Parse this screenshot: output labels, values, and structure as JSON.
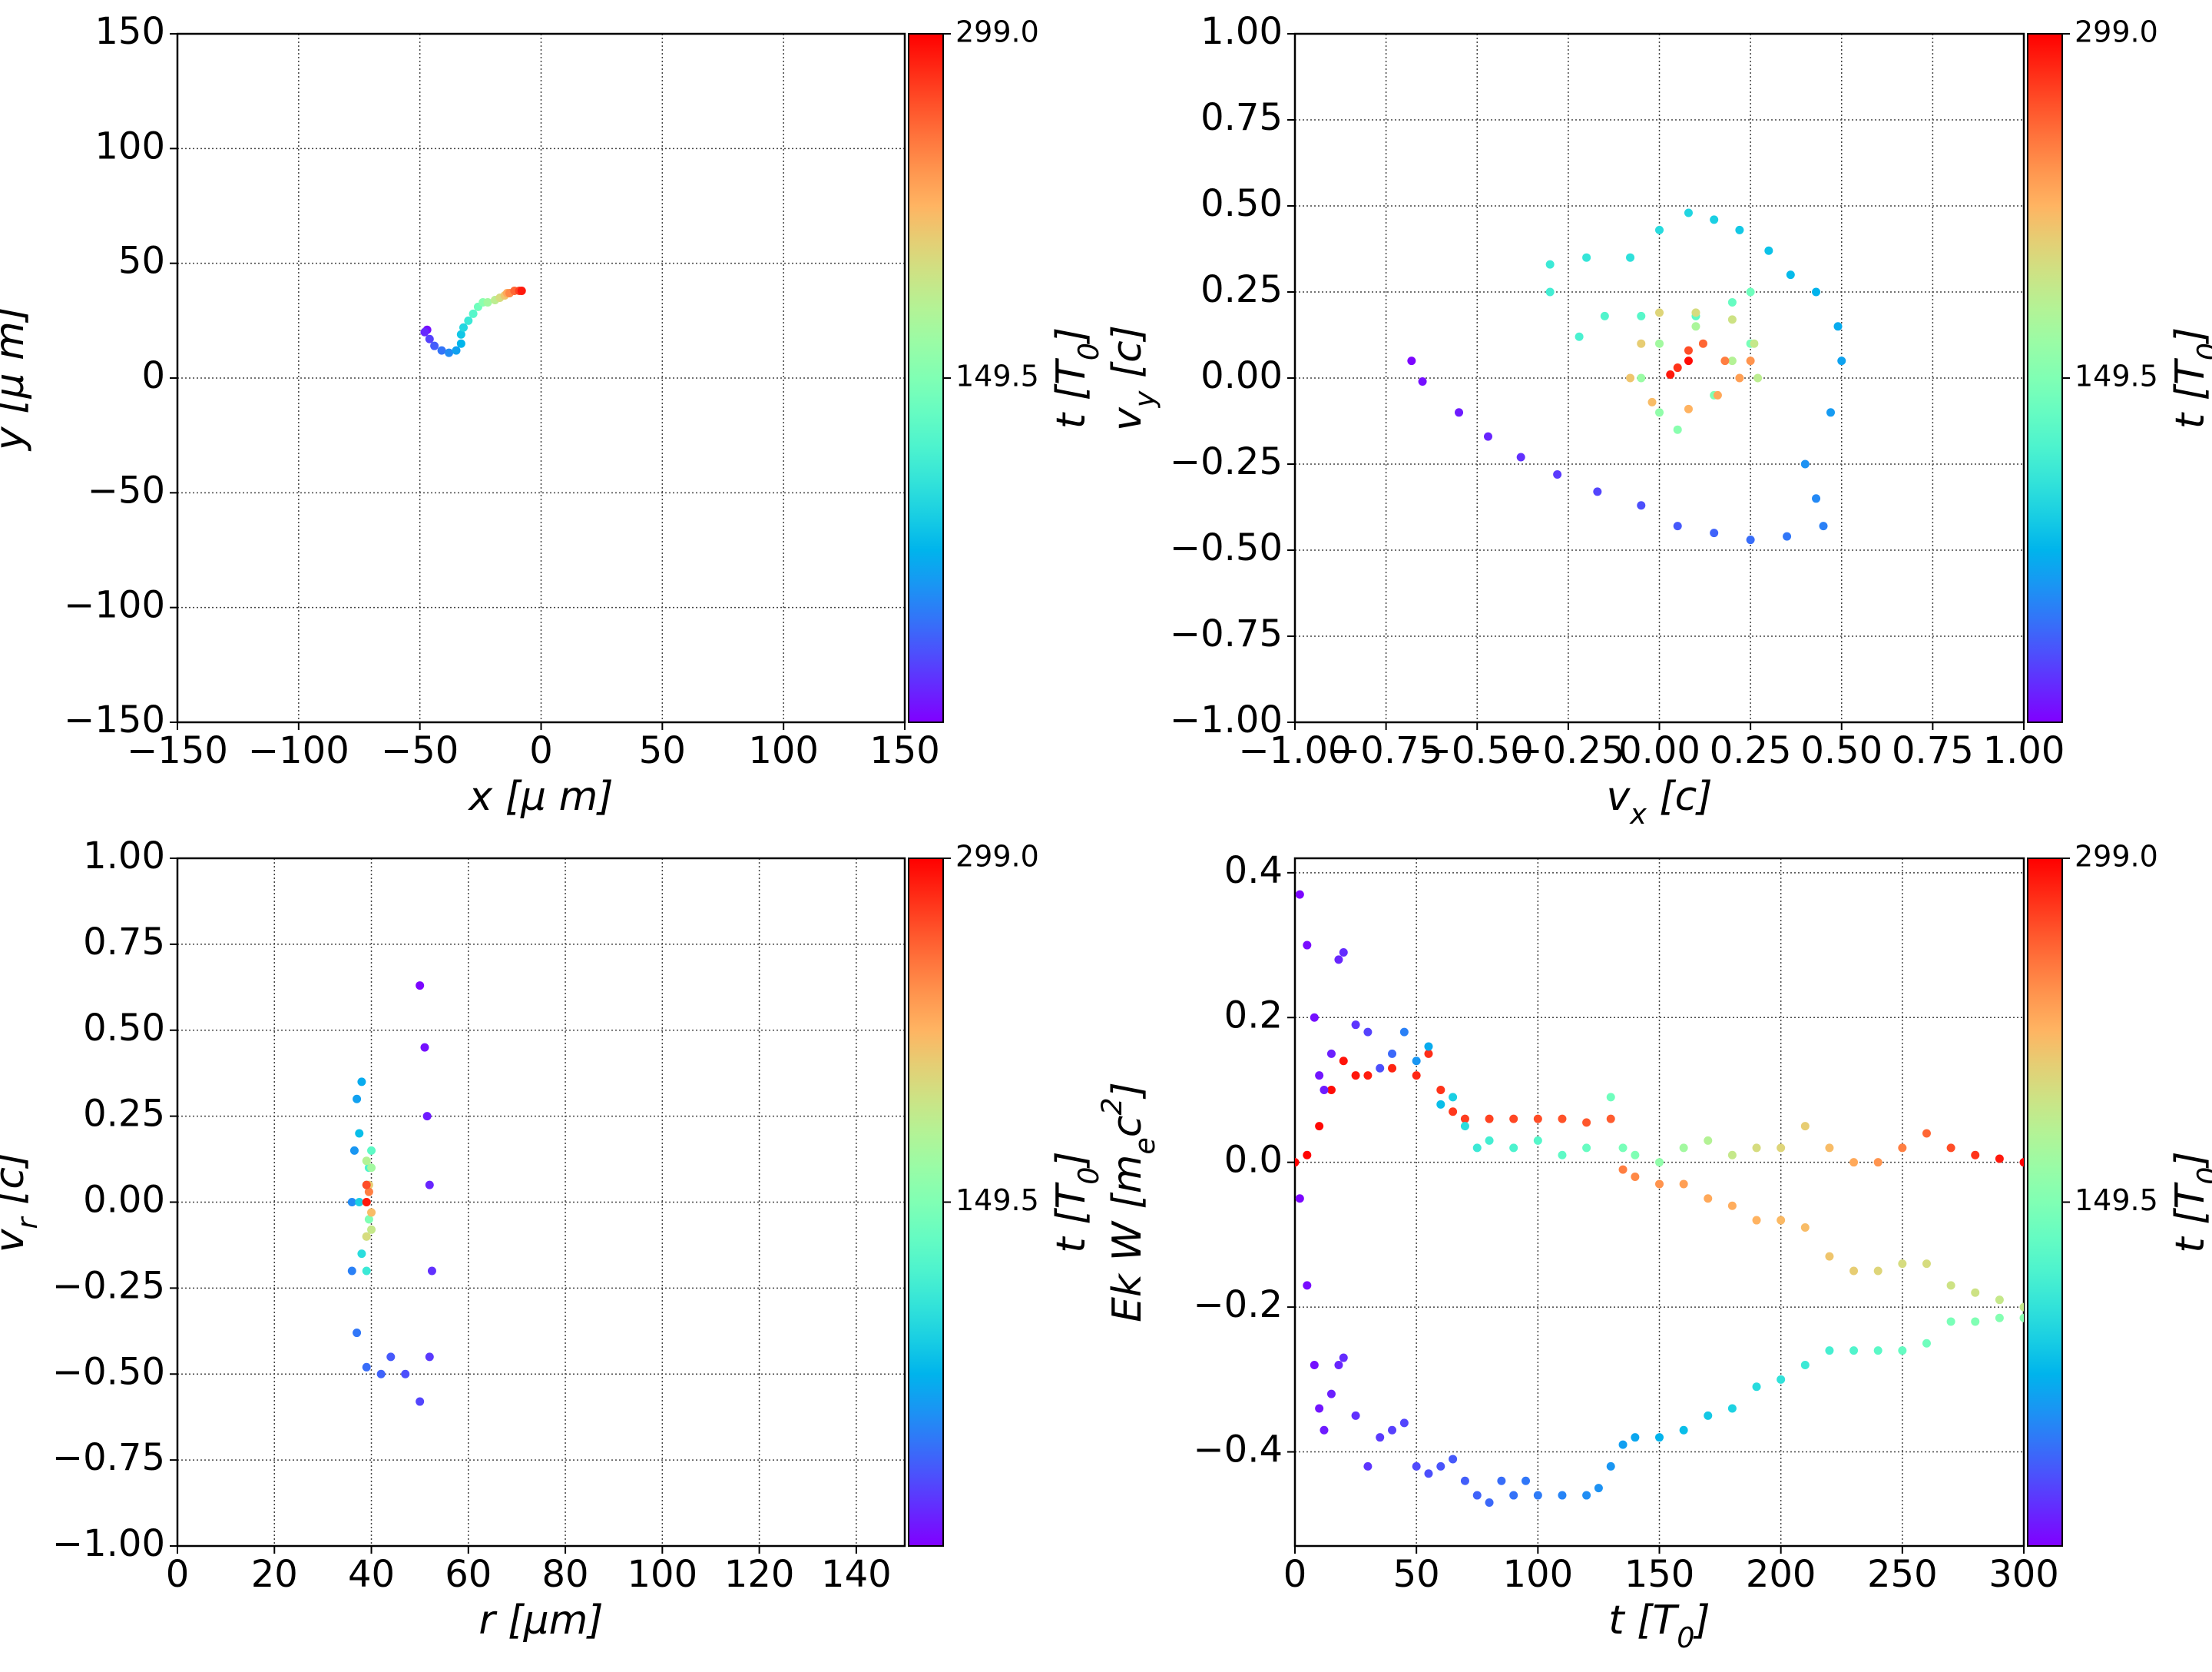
{
  "chart_data": [
    {
      "type": "scatter",
      "xlabel": "x  [μ m]",
      "ylabel": "y  [μ m]",
      "xlim": [
        -150,
        150
      ],
      "ylim": [
        -150,
        150
      ],
      "grid": true,
      "xticks": [
        {
          "value": -150,
          "label": "−150"
        },
        {
          "value": -100,
          "label": "−100"
        },
        {
          "value": -50,
          "label": "−50"
        },
        0,
        50,
        100,
        150
      ],
      "yticks": [
        {
          "value": -150,
          "label": "−150"
        },
        {
          "value": -100,
          "label": "−100"
        },
        {
          "value": -50,
          "label": "−50"
        },
        0,
        50,
        100,
        150
      ],
      "series": [
        {
          "x": [
            -47,
            -48,
            -46,
            -44,
            -41,
            -38,
            -35,
            -33,
            -33,
            -32,
            -30,
            -28,
            -26,
            -24,
            -22,
            -19,
            -17,
            -15,
            -14,
            -13,
            -11,
            -9,
            -8
          ],
          "values": [
            21,
            20,
            17,
            14,
            12,
            11,
            12,
            15,
            19,
            22,
            25,
            28,
            31,
            33,
            33,
            34,
            35,
            36,
            37,
            37,
            38,
            38,
            38
          ],
          "c": [
            5,
            15,
            25,
            35,
            45,
            55,
            65,
            75,
            85,
            95,
            110,
            125,
            140,
            155,
            170,
            185,
            200,
            215,
            230,
            245,
            260,
            275,
            290
          ]
        }
      ],
      "colorbar": {
        "label": "t [T_{0}]",
        "colormap": "rainbow",
        "clim": [
          0,
          299
        ],
        "ticks": [
          149.5,
          {
            "value": 299,
            "label": "299.0"
          }
        ]
      }
    },
    {
      "type": "scatter",
      "xlabel": "v_{x} [c]",
      "ylabel": "v_{y} [c]",
      "xlim": [
        -1,
        1
      ],
      "ylim": [
        -1,
        1
      ],
      "grid": true,
      "xticks": [
        {
          "value": -1,
          "label": "−1.00"
        },
        {
          "value": -0.75,
          "label": "−0.75"
        },
        {
          "value": -0.5,
          "label": "−0.50"
        },
        {
          "value": -0.25,
          "label": "−0.25"
        },
        {
          "value": 0,
          "label": "0.00"
        },
        0.25,
        {
          "value": 0.5,
          "label": "0.50"
        },
        0.75,
        {
          "value": 1,
          "label": "1.00"
        }
      ],
      "yticks": [
        {
          "value": -1,
          "label": "−1.00"
        },
        {
          "value": -0.75,
          "label": "−0.75"
        },
        {
          "value": -0.5,
          "label": "−0.50"
        },
        {
          "value": -0.25,
          "label": "−0.25"
        },
        {
          "value": 0,
          "label": "0.00"
        },
        0.25,
        {
          "value": 0.5,
          "label": "0.50"
        },
        0.75,
        {
          "value": 1,
          "label": "1.00"
        }
      ],
      "series": [
        {
          "x": [
            -0.68,
            -0.65,
            -0.55,
            -0.47,
            -0.38,
            -0.28,
            -0.17,
            -0.05,
            0.05,
            0.15,
            0.25,
            0.35,
            0.45,
            0.43,
            0.4,
            0.47,
            0.5,
            0.49,
            0.43,
            0.36,
            0.3,
            0.22,
            0.15,
            0.08,
            0.0,
            -0.08,
            -0.2,
            -0.3,
            -0.3,
            -0.22,
            -0.15,
            -0.05,
            0.1,
            0.2,
            0.25,
            0.25,
            0.15,
            0.05,
            0.0,
            -0.05,
            0.0,
            0.1,
            0.2,
            0.27,
            0.26,
            0.2,
            0.1,
            0.0,
            -0.05,
            -0.08,
            -0.02,
            0.08,
            0.16,
            0.22,
            0.25,
            0.18,
            0.12,
            0.08,
            0.05,
            0.03,
            0.08
          ],
          "values": [
            0.05,
            -0.01,
            -0.1,
            -0.17,
            -0.23,
            -0.28,
            -0.33,
            -0.37,
            -0.43,
            -0.45,
            -0.47,
            -0.46,
            -0.43,
            -0.35,
            -0.25,
            -0.1,
            0.05,
            0.15,
            0.25,
            0.3,
            0.37,
            0.43,
            0.46,
            0.48,
            0.43,
            0.35,
            0.35,
            0.33,
            0.25,
            0.12,
            0.18,
            0.18,
            0.18,
            0.22,
            0.25,
            0.1,
            -0.05,
            -0.15,
            -0.1,
            0.0,
            0.1,
            0.15,
            0.05,
            0.0,
            0.1,
            0.17,
            0.19,
            0.19,
            0.1,
            0.0,
            -0.07,
            -0.09,
            -0.05,
            0.0,
            0.05,
            0.05,
            0.1,
            0.08,
            0.03,
            0.01,
            0.05
          ],
          "c": [
            2,
            6,
            10,
            14,
            18,
            22,
            26,
            30,
            34,
            38,
            42,
            46,
            50,
            54,
            58,
            62,
            66,
            70,
            74,
            78,
            82,
            86,
            90,
            94,
            98,
            102,
            106,
            110,
            114,
            118,
            122,
            126,
            130,
            135,
            140,
            145,
            150,
            155,
            160,
            165,
            170,
            175,
            180,
            185,
            190,
            195,
            200,
            205,
            210,
            215,
            220,
            225,
            230,
            235,
            240,
            250,
            260,
            270,
            280,
            290,
            295
          ]
        }
      ],
      "colorbar": {
        "label": "t [T_{0}]",
        "colormap": "rainbow",
        "clim": [
          0,
          299
        ],
        "ticks": [
          149.5,
          {
            "value": 299,
            "label": "299.0"
          }
        ]
      }
    },
    {
      "type": "scatter",
      "xlabel": "r [μm]",
      "ylabel": "v_{r} [c]",
      "xlim": [
        0,
        150
      ],
      "ylim": [
        -1,
        1
      ],
      "grid": true,
      "xticks": [
        0,
        20,
        40,
        60,
        80,
        100,
        120,
        140
      ],
      "yticks": [
        {
          "value": -1,
          "label": "−1.00"
        },
        {
          "value": -0.75,
          "label": "−0.75"
        },
        {
          "value": -0.5,
          "label": "−0.50"
        },
        {
          "value": -0.25,
          "label": "−0.25"
        },
        {
          "value": 0,
          "label": "0.00"
        },
        0.25,
        {
          "value": 0.5,
          "label": "0.50"
        },
        0.75,
        {
          "value": 1,
          "label": "1.00"
        }
      ],
      "series": [
        {
          "x": [
            50,
            51,
            51.5,
            52,
            52.5,
            52,
            50,
            47,
            44,
            42,
            39,
            37,
            36,
            36,
            36.5,
            37,
            38,
            37.5,
            37.5,
            38,
            39,
            39.5,
            40,
            39,
            39.5,
            39,
            40,
            39,
            40,
            39,
            39.5,
            40,
            39,
            39.5,
            39,
            39
          ],
          "values": [
            0.63,
            0.45,
            0.25,
            0.05,
            -0.2,
            -0.45,
            -0.58,
            -0.5,
            -0.45,
            -0.5,
            -0.48,
            -0.38,
            -0.2,
            0.0,
            0.15,
            0.3,
            0.35,
            0.2,
            0.0,
            -0.15,
            -0.2,
            0.1,
            0.15,
            0.05,
            -0.05,
            -0.1,
            0.1,
            0.12,
            -0.08,
            -0.1,
            0.05,
            -0.03,
            0.0,
            0.03,
            0.05,
            0.0
          ],
          "c": [
            2,
            6,
            10,
            14,
            18,
            22,
            26,
            30,
            34,
            38,
            42,
            46,
            50,
            55,
            60,
            65,
            70,
            80,
            90,
            100,
            110,
            120,
            130,
            140,
            150,
            160,
            170,
            180,
            190,
            200,
            210,
            220,
            230,
            250,
            270,
            290
          ]
        }
      ],
      "colorbar": {
        "label": "t [T_{0}]",
        "colormap": "rainbow",
        "clim": [
          0,
          299
        ],
        "ticks": [
          149.5,
          {
            "value": 299,
            "label": "299.0"
          }
        ]
      }
    },
    {
      "type": "scatter",
      "xlabel": "t [T_{0}]",
      "ylabel": "Ek W [m_{e}c^{2}]",
      "xlim": [
        0,
        300
      ],
      "ylim": [
        -0.53,
        0.42
      ],
      "grid": true,
      "xticks": [
        0,
        50,
        100,
        150,
        200,
        250,
        300
      ],
      "yticks": [
        {
          "value": -0.4,
          "label": "−0.4"
        },
        {
          "value": -0.2,
          "label": "−0.2"
        },
        {
          "value": 0,
          "label": "0.0"
        },
        0.2,
        0.4
      ],
      "series": [
        {
          "x": [
            0,
            5,
            10,
            15,
            20,
            25,
            30,
            40,
            50,
            55,
            60,
            65,
            70,
            80,
            90,
            100,
            110,
            120,
            130,
            135,
            140,
            150,
            160,
            170,
            180,
            190,
            200,
            210,
            220,
            230,
            240,
            250,
            260,
            270,
            280,
            290,
            300
          ],
          "values": [
            0,
            0.01,
            0.05,
            0.1,
            0.14,
            0.12,
            0.12,
            0.13,
            0.12,
            0.15,
            0.1,
            0.07,
            0.06,
            0.06,
            0.06,
            0.06,
            0.06,
            0.055,
            0.06,
            -0.01,
            -0.02,
            -0.03,
            -0.03,
            -0.05,
            -0.06,
            -0.08,
            -0.08,
            -0.09,
            -0.13,
            -0.15,
            -0.15,
            -0.14,
            -0.14,
            -0.17,
            -0.18,
            -0.19,
            -0.2
          ],
          "c": [
            299,
            298,
            296,
            294,
            292,
            290,
            288,
            286,
            284,
            282,
            280,
            278,
            276,
            274,
            272,
            270,
            268,
            266,
            264,
            250,
            245,
            240,
            235,
            230,
            228,
            225,
            222,
            220,
            215,
            210,
            205,
            200,
            200,
            195,
            195,
            190,
            190
          ]
        },
        {
          "x": [
            2,
            5,
            8,
            10,
            12,
            15,
            18,
            20,
            25,
            30,
            35,
            40,
            45,
            50,
            55,
            60,
            65,
            70,
            75,
            80,
            90,
            100,
            110,
            120,
            130,
            135,
            140,
            150,
            160,
            170,
            180,
            190,
            200,
            210,
            220,
            230,
            240,
            250,
            260,
            270,
            280,
            290,
            300
          ],
          "values": [
            0.37,
            0.3,
            0.2,
            0.12,
            0.1,
            0.15,
            0.28,
            0.29,
            0.19,
            0.18,
            0.13,
            0.15,
            0.18,
            0.14,
            0.16,
            0.08,
            0.09,
            0.05,
            0.02,
            0.03,
            0.02,
            0.03,
            0.01,
            0.02,
            0.09,
            0.02,
            0.01,
            0.0,
            0.02,
            0.03,
            0.01,
            0.02,
            0.02,
            0.05,
            0.02,
            0.0,
            0.0,
            0.02,
            0.04,
            0.02,
            0.01,
            0.005,
            0.0
          ],
          "c": [
            2,
            4,
            6,
            8,
            10,
            12,
            14,
            16,
            20,
            25,
            30,
            40,
            50,
            60,
            70,
            80,
            90,
            100,
            110,
            115,
            120,
            125,
            130,
            135,
            140,
            145,
            150,
            160,
            170,
            180,
            190,
            200,
            205,
            210,
            220,
            230,
            240,
            250,
            260,
            270,
            280,
            290,
            299
          ]
        },
        {
          "x": [
            2,
            5,
            8,
            10,
            12,
            15,
            18,
            20,
            25,
            30,
            35,
            40,
            45,
            50,
            55,
            60,
            65,
            70,
            75,
            80,
            85,
            90,
            95,
            100,
            110,
            120,
            125,
            130,
            135,
            140,
            150,
            160,
            170,
            180,
            190,
            200,
            210,
            220,
            230,
            240,
            250,
            260,
            270,
            280,
            290,
            300
          ],
          "values": [
            -0.05,
            -0.17,
            -0.28,
            -0.34,
            -0.37,
            -0.32,
            -0.28,
            -0.27,
            -0.35,
            -0.42,
            -0.38,
            -0.37,
            -0.36,
            -0.42,
            -0.43,
            -0.42,
            -0.41,
            -0.44,
            -0.46,
            -0.47,
            -0.44,
            -0.46,
            -0.44,
            -0.46,
            -0.46,
            -0.46,
            -0.45,
            -0.42,
            -0.39,
            -0.38,
            -0.38,
            -0.37,
            -0.35,
            -0.34,
            -0.31,
            -0.3,
            -0.28,
            -0.26,
            -0.26,
            -0.26,
            -0.26,
            -0.25,
            -0.22,
            -0.22,
            -0.215,
            -0.215
          ],
          "c": [
            2,
            4,
            6,
            8,
            10,
            12,
            14,
            16,
            18,
            20,
            22,
            24,
            26,
            28,
            30,
            32,
            34,
            36,
            38,
            40,
            42,
            44,
            46,
            48,
            52,
            56,
            58,
            60,
            64,
            68,
            74,
            80,
            86,
            92,
            98,
            104,
            110,
            116,
            122,
            128,
            134,
            140,
            146,
            150,
            152,
            155
          ]
        }
      ],
      "colorbar": {
        "label": "t [T_{0}]",
        "colormap": "rainbow",
        "clim": [
          0,
          299
        ],
        "ticks": [
          149.5,
          {
            "value": 299,
            "label": "299.0"
          }
        ]
      }
    }
  ]
}
